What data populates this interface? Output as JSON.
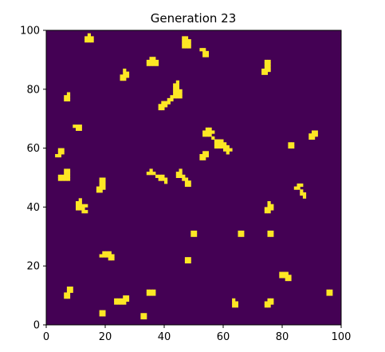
{
  "chart_data": {
    "type": "heatmap",
    "title": "Generation 23",
    "xlabel": "",
    "ylabel": "",
    "xlim": [
      0,
      100
    ],
    "ylim": [
      0,
      100
    ],
    "xticks": [
      "0",
      "20",
      "40",
      "60",
      "80",
      "100"
    ],
    "yticks": [
      "0",
      "20",
      "40",
      "60",
      "80",
      "100"
    ],
    "grid": false,
    "colors": {
      "dead": "#440154",
      "alive": "#fde725"
    },
    "cell_size": 1,
    "live_cells": [
      [
        13,
        96
      ],
      [
        14,
        96
      ],
      [
        15,
        96
      ],
      [
        13,
        97
      ],
      [
        14,
        97
      ],
      [
        15,
        97
      ],
      [
        14,
        98
      ],
      [
        46,
        94
      ],
      [
        47,
        94
      ],
      [
        48,
        94
      ],
      [
        46,
        95
      ],
      [
        47,
        95
      ],
      [
        48,
        95
      ],
      [
        46,
        96
      ],
      [
        47,
        96
      ],
      [
        48,
        96
      ],
      [
        46,
        97
      ],
      [
        47,
        97
      ],
      [
        53,
        91
      ],
      [
        54,
        91
      ],
      [
        53,
        92
      ],
      [
        54,
        92
      ],
      [
        53,
        93
      ],
      [
        52,
        93
      ],
      [
        34,
        88
      ],
      [
        35,
        88
      ],
      [
        36,
        88
      ],
      [
        37,
        88
      ],
      [
        34,
        89
      ],
      [
        35,
        89
      ],
      [
        36,
        89
      ],
      [
        37,
        89
      ],
      [
        35,
        90
      ],
      [
        36,
        90
      ],
      [
        73,
        85
      ],
      [
        74,
        85
      ],
      [
        73,
        86
      ],
      [
        74,
        86
      ],
      [
        75,
        86
      ],
      [
        74,
        87
      ],
      [
        75,
        87
      ],
      [
        74,
        88
      ],
      [
        75,
        88
      ],
      [
        75,
        89
      ],
      [
        74,
        89
      ],
      [
        25,
        83
      ],
      [
        26,
        83
      ],
      [
        25,
        84
      ],
      [
        26,
        84
      ],
      [
        27,
        84
      ],
      [
        26,
        85
      ],
      [
        27,
        85
      ],
      [
        26,
        86
      ],
      [
        42,
        77
      ],
      [
        43,
        77
      ],
      [
        44,
        77
      ],
      [
        45,
        77
      ],
      [
        43,
        78
      ],
      [
        44,
        78
      ],
      [
        45,
        78
      ],
      [
        43,
        79
      ],
      [
        44,
        79
      ],
      [
        45,
        79
      ],
      [
        43,
        80
      ],
      [
        44,
        80
      ],
      [
        44,
        81
      ],
      [
        43,
        81
      ],
      [
        44,
        82
      ],
      [
        38,
        73
      ],
      [
        39,
        73
      ],
      [
        38,
        74
      ],
      [
        39,
        74
      ],
      [
        40,
        74
      ],
      [
        39,
        75
      ],
      [
        40,
        75
      ],
      [
        41,
        75
      ],
      [
        41,
        76
      ],
      [
        42,
        76
      ],
      [
        6,
        76
      ],
      [
        7,
        76
      ],
      [
        6,
        77
      ],
      [
        7,
        77
      ],
      [
        7,
        78
      ],
      [
        10,
        66
      ],
      [
        11,
        66
      ],
      [
        9,
        67
      ],
      [
        10,
        67
      ],
      [
        11,
        67
      ],
      [
        53,
        64
      ],
      [
        54,
        64
      ],
      [
        55,
        64
      ],
      [
        53,
        65
      ],
      [
        54,
        65
      ],
      [
        55,
        65
      ],
      [
        56,
        65
      ],
      [
        54,
        66
      ],
      [
        55,
        66
      ],
      [
        57,
        60
      ],
      [
        58,
        60
      ],
      [
        59,
        60
      ],
      [
        60,
        60
      ],
      [
        57,
        61
      ],
      [
        58,
        61
      ],
      [
        59,
        61
      ],
      [
        60,
        61
      ],
      [
        57,
        62
      ],
      [
        58,
        62
      ],
      [
        59,
        62
      ],
      [
        56,
        63
      ],
      [
        60,
        59
      ],
      [
        61,
        59
      ],
      [
        62,
        59
      ],
      [
        61,
        60
      ],
      [
        61,
        58
      ],
      [
        52,
        56
      ],
      [
        53,
        56
      ],
      [
        52,
        57
      ],
      [
        53,
        57
      ],
      [
        54,
        57
      ],
      [
        53,
        58
      ],
      [
        54,
        58
      ],
      [
        82,
        60
      ],
      [
        83,
        60
      ],
      [
        82,
        61
      ],
      [
        83,
        61
      ],
      [
        89,
        63
      ],
      [
        90,
        63
      ],
      [
        89,
        64
      ],
      [
        90,
        64
      ],
      [
        91,
        64
      ],
      [
        91,
        65
      ],
      [
        90,
        65
      ],
      [
        3,
        57
      ],
      [
        4,
        57
      ],
      [
        4,
        58
      ],
      [
        5,
        58
      ],
      [
        4,
        59
      ],
      [
        5,
        59
      ],
      [
        4,
        49
      ],
      [
        5,
        49
      ],
      [
        6,
        49
      ],
      [
        7,
        49
      ],
      [
        4,
        50
      ],
      [
        5,
        50
      ],
      [
        6,
        50
      ],
      [
        7,
        50
      ],
      [
        6,
        51
      ],
      [
        7,
        51
      ],
      [
        6,
        52
      ],
      [
        7,
        52
      ],
      [
        34,
        51
      ],
      [
        35,
        51
      ],
      [
        35,
        52
      ],
      [
        36,
        51
      ],
      [
        37,
        50
      ],
      [
        38,
        50
      ],
      [
        39,
        50
      ],
      [
        38,
        49
      ],
      [
        39,
        49
      ],
      [
        40,
        49
      ],
      [
        40,
        48
      ],
      [
        44,
        50
      ],
      [
        45,
        50
      ],
      [
        46,
        50
      ],
      [
        44,
        51
      ],
      [
        45,
        51
      ],
      [
        45,
        52
      ],
      [
        46,
        49
      ],
      [
        47,
        49
      ],
      [
        47,
        48
      ],
      [
        48,
        48
      ],
      [
        48,
        47
      ],
      [
        47,
        47
      ],
      [
        17,
        45
      ],
      [
        18,
        45
      ],
      [
        17,
        46
      ],
      [
        18,
        46
      ],
      [
        19,
        46
      ],
      [
        18,
        47
      ],
      [
        19,
        47
      ],
      [
        18,
        48
      ],
      [
        19,
        48
      ],
      [
        19,
        49
      ],
      [
        18,
        49
      ],
      [
        84,
        46
      ],
      [
        85,
        46
      ],
      [
        85,
        47
      ],
      [
        86,
        47
      ],
      [
        86,
        45
      ],
      [
        86,
        44
      ],
      [
        87,
        44
      ],
      [
        87,
        43
      ],
      [
        10,
        39
      ],
      [
        11,
        39
      ],
      [
        12,
        39
      ],
      [
        10,
        40
      ],
      [
        11,
        40
      ],
      [
        12,
        40
      ],
      [
        13,
        40
      ],
      [
        10,
        41
      ],
      [
        11,
        41
      ],
      [
        11,
        42
      ],
      [
        12,
        38
      ],
      [
        13,
        38
      ],
      [
        74,
        38
      ],
      [
        75,
        38
      ],
      [
        74,
        39
      ],
      [
        75,
        39
      ],
      [
        76,
        39
      ],
      [
        75,
        40
      ],
      [
        76,
        40
      ],
      [
        75,
        41
      ],
      [
        49,
        30
      ],
      [
        50,
        30
      ],
      [
        49,
        31
      ],
      [
        50,
        31
      ],
      [
        65,
        30
      ],
      [
        66,
        30
      ],
      [
        65,
        31
      ],
      [
        66,
        31
      ],
      [
        75,
        30
      ],
      [
        76,
        30
      ],
      [
        75,
        31
      ],
      [
        76,
        31
      ],
      [
        18,
        23
      ],
      [
        19,
        23
      ],
      [
        20,
        23
      ],
      [
        19,
        24
      ],
      [
        20,
        24
      ],
      [
        21,
        24
      ],
      [
        21,
        22
      ],
      [
        22,
        22
      ],
      [
        22,
        23
      ],
      [
        21,
        23
      ],
      [
        47,
        21
      ],
      [
        48,
        21
      ],
      [
        47,
        22
      ],
      [
        48,
        22
      ],
      [
        79,
        16
      ],
      [
        80,
        16
      ],
      [
        81,
        16
      ],
      [
        80,
        17
      ],
      [
        81,
        17
      ],
      [
        79,
        17
      ],
      [
        81,
        15
      ],
      [
        82,
        15
      ],
      [
        82,
        16
      ],
      [
        6,
        9
      ],
      [
        7,
        9
      ],
      [
        6,
        10
      ],
      [
        7,
        10
      ],
      [
        7,
        11
      ],
      [
        7,
        12
      ],
      [
        8,
        11
      ],
      [
        8,
        12
      ],
      [
        34,
        10
      ],
      [
        35,
        10
      ],
      [
        36,
        10
      ],
      [
        34,
        11
      ],
      [
        35,
        11
      ],
      [
        36,
        11
      ],
      [
        95,
        10
      ],
      [
        96,
        10
      ],
      [
        95,
        11
      ],
      [
        96,
        11
      ],
      [
        23,
        7
      ],
      [
        24,
        7
      ],
      [
        25,
        7
      ],
      [
        26,
        7
      ],
      [
        23,
        8
      ],
      [
        24,
        8
      ],
      [
        25,
        8
      ],
      [
        26,
        8
      ],
      [
        27,
        8
      ],
      [
        26,
        9
      ],
      [
        27,
        9
      ],
      [
        74,
        6
      ],
      [
        75,
        6
      ],
      [
        74,
        7
      ],
      [
        75,
        7
      ],
      [
        76,
        7
      ],
      [
        75,
        8
      ],
      [
        76,
        8
      ],
      [
        63,
        6
      ],
      [
        64,
        6
      ],
      [
        63,
        7
      ],
      [
        64,
        7
      ],
      [
        63,
        8
      ],
      [
        18,
        3
      ],
      [
        19,
        3
      ],
      [
        18,
        4
      ],
      [
        19,
        4
      ],
      [
        32,
        2
      ],
      [
        33,
        2
      ],
      [
        32,
        3
      ],
      [
        33,
        3
      ]
    ]
  }
}
